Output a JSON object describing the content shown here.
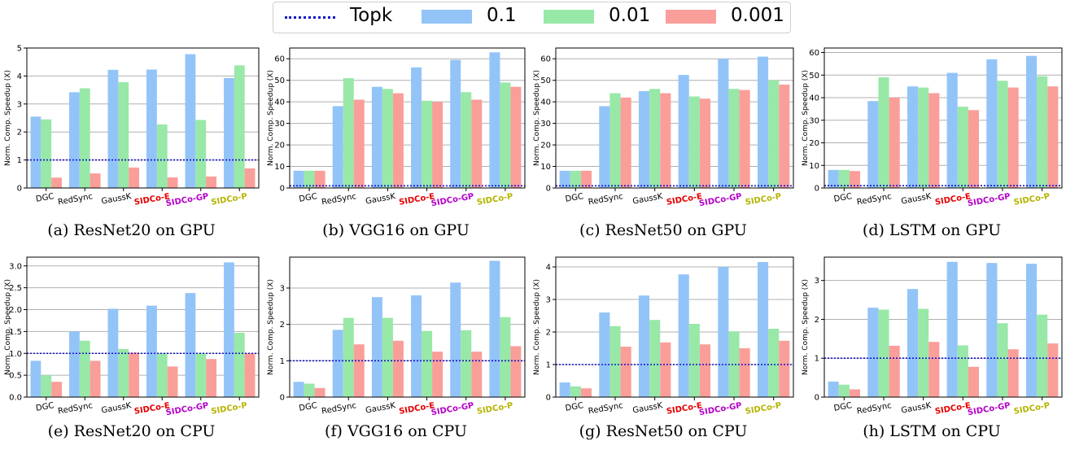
{
  "legend": [
    {
      "name": "Topk",
      "kind": "line",
      "color": "#1414c8"
    },
    {
      "name": "0.1",
      "kind": "bar",
      "color": "#93c4f8"
    },
    {
      "name": "0.01",
      "kind": "bar",
      "color": "#98e8a8"
    },
    {
      "name": "0.001",
      "kind": "bar",
      "color": "#fa9e9a"
    }
  ],
  "chart_data": [
    {
      "type": "bar",
      "caption": "(a) ResNet20 on GPU",
      "ylabel": "Norm. Comp. Speedup (X)",
      "ylim": [
        0,
        5
      ],
      "yticks": [
        "0",
        "1",
        "2",
        "3",
        "4",
        "5"
      ],
      "yticks_values": [
        0,
        1,
        2,
        3,
        4,
        5
      ],
      "grid": true,
      "categories": [
        "DGC",
        "RedSync",
        "GaussK",
        "SIDCo-E",
        "SIDCo-GP",
        "SIDCo-P"
      ],
      "category_colors": [
        "#000000",
        "#000000",
        "#000000",
        "#e60000",
        "#b400c8",
        "#b4b400"
      ],
      "baseline": 1.0,
      "series": [
        {
          "name": "0.1",
          "values": [
            2.55,
            3.42,
            4.22,
            4.23,
            4.78,
            3.93
          ]
        },
        {
          "name": "0.01",
          "values": [
            2.45,
            3.56,
            3.78,
            2.27,
            2.43,
            4.38
          ]
        },
        {
          "name": "0.001",
          "values": [
            0.37,
            0.52,
            0.73,
            0.38,
            0.41,
            0.7
          ]
        }
      ]
    },
    {
      "type": "bar",
      "caption": "(b) VGG16 on GPU",
      "ylabel": "Norm. Comp. Speedup (X)",
      "ylim": [
        0,
        65
      ],
      "yticks": [
        "0",
        "10",
        "20",
        "30",
        "40",
        "50",
        "60"
      ],
      "yticks_values": [
        0,
        10,
        20,
        30,
        40,
        50,
        60
      ],
      "grid": true,
      "categories": [
        "DGC",
        "RedSync",
        "GaussK",
        "SIDCo-E",
        "SIDCo-GP",
        "SIDCo-P"
      ],
      "category_colors": [
        "#000000",
        "#000000",
        "#000000",
        "#e60000",
        "#b400c8",
        "#b4b400"
      ],
      "baseline": 1.0,
      "series": [
        {
          "name": "0.1",
          "values": [
            8,
            38,
            47,
            56,
            59.5,
            63
          ]
        },
        {
          "name": "0.01",
          "values": [
            8,
            51,
            46,
            40.5,
            44.5,
            49
          ]
        },
        {
          "name": "0.001",
          "values": [
            8,
            41,
            44,
            40,
            41,
            47
          ]
        }
      ]
    },
    {
      "type": "bar",
      "caption": "(c) ResNet50 on GPU",
      "ylabel": "Norm. Comp. Speedup (X)",
      "ylim": [
        0,
        65
      ],
      "yticks": [
        "0",
        "10",
        "20",
        "30",
        "40",
        "50",
        "60"
      ],
      "yticks_values": [
        0,
        10,
        20,
        30,
        40,
        50,
        60
      ],
      "grid": true,
      "categories": [
        "DGC",
        "RedSync",
        "GaussK",
        "SIDCo-E",
        "SIDCo-GP",
        "SIDCo-P"
      ],
      "category_colors": [
        "#000000",
        "#000000",
        "#000000",
        "#e60000",
        "#b400c8",
        "#b4b400"
      ],
      "baseline": 1.0,
      "series": [
        {
          "name": "0.1",
          "values": [
            8,
            38,
            45,
            52.5,
            60,
            61
          ]
        },
        {
          "name": "0.01",
          "values": [
            8,
            44,
            46,
            42.5,
            46,
            50
          ]
        },
        {
          "name": "0.001",
          "values": [
            8,
            42,
            44,
            41.5,
            45.5,
            48
          ]
        }
      ]
    },
    {
      "type": "bar",
      "caption": "(d) LSTM on GPU",
      "ylabel": "Norm. Comp. Speedup (X)",
      "ylim": [
        0,
        62
      ],
      "yticks": [
        "0",
        "10",
        "20",
        "30",
        "40",
        "50",
        "60"
      ],
      "yticks_values": [
        0,
        10,
        20,
        30,
        40,
        50,
        60
      ],
      "grid": true,
      "categories": [
        "DGC",
        "RedSync",
        "GaussK",
        "SIDCo-E",
        "SIDCo-GP",
        "SIDCo-P"
      ],
      "category_colors": [
        "#000000",
        "#000000",
        "#000000",
        "#e60000",
        "#b400c8",
        "#b4b400"
      ],
      "baseline": 1.0,
      "series": [
        {
          "name": "0.1",
          "values": [
            8,
            38.5,
            45,
            51,
            57,
            58.5
          ]
        },
        {
          "name": "0.01",
          "values": [
            8,
            49,
            44.5,
            36,
            47.5,
            49.5
          ]
        },
        {
          "name": "0.001",
          "values": [
            7.5,
            40,
            42,
            34.5,
            44.5,
            45
          ]
        }
      ]
    },
    {
      "type": "bar",
      "caption": "(e) ResNet20 on CPU",
      "ylabel": "Norm. Comp. Speedup (X)",
      "ylim": [
        0,
        3.2
      ],
      "yticks": [
        "0.0",
        "0.5",
        "1.0",
        "1.5",
        "2.0",
        "2.5",
        "3.0"
      ],
      "yticks_values": [
        0,
        0.5,
        1,
        1.5,
        2,
        2.5,
        3
      ],
      "grid": true,
      "categories": [
        "DGC",
        "RedSync",
        "GaussK",
        "SIDCo-E",
        "SIDCo-GP",
        "SIDCo-P"
      ],
      "category_colors": [
        "#000000",
        "#000000",
        "#000000",
        "#e60000",
        "#b400c8",
        "#b4b400"
      ],
      "baseline": 1.0,
      "series": [
        {
          "name": "0.1",
          "values": [
            0.83,
            1.5,
            2.02,
            2.09,
            2.38,
            3.08
          ]
        },
        {
          "name": "0.01",
          "values": [
            0.5,
            1.29,
            1.1,
            1.0,
            1.0,
            1.47
          ]
        },
        {
          "name": "0.001",
          "values": [
            0.35,
            0.83,
            1.02,
            0.7,
            0.87,
            1.0
          ]
        }
      ]
    },
    {
      "type": "bar",
      "caption": "(f) VGG16 on CPU",
      "ylabel": "Norm. Comp. Speedup (X)",
      "ylim": [
        0,
        3.85
      ],
      "yticks": [
        "0",
        "1",
        "2",
        "3"
      ],
      "yticks_values": [
        0,
        1,
        2,
        3
      ],
      "grid": true,
      "categories": [
        "DGC",
        "RedSync",
        "GaussK",
        "SIDCo-E",
        "SIDCo-GP",
        "SIDCo-P"
      ],
      "category_colors": [
        "#000000",
        "#000000",
        "#000000",
        "#e60000",
        "#b400c8",
        "#b4b400"
      ],
      "baseline": 1.0,
      "series": [
        {
          "name": "0.1",
          "values": [
            0.42,
            1.85,
            2.75,
            2.8,
            3.15,
            3.75
          ]
        },
        {
          "name": "0.01",
          "values": [
            0.37,
            2.18,
            2.18,
            1.82,
            1.84,
            2.2
          ]
        },
        {
          "name": "0.001",
          "values": [
            0.25,
            1.45,
            1.55,
            1.25,
            1.25,
            1.4
          ]
        }
      ]
    },
    {
      "type": "bar",
      "caption": "(g) ResNet50 on CPU",
      "ylabel": "Norm. Comp. Speedup (X)",
      "ylim": [
        0,
        4.3
      ],
      "yticks": [
        "0",
        "1",
        "2",
        "3",
        "4"
      ],
      "yticks_values": [
        0,
        1,
        2,
        3,
        4
      ],
      "grid": true,
      "categories": [
        "DGC",
        "RedSync",
        "GaussK",
        "SIDCo-E",
        "SIDCo-GP",
        "SIDCo-P"
      ],
      "category_colors": [
        "#000000",
        "#000000",
        "#000000",
        "#e60000",
        "#b400c8",
        "#b4b400"
      ],
      "baseline": 1.0,
      "series": [
        {
          "name": "0.1",
          "values": [
            0.45,
            2.6,
            3.12,
            3.77,
            4.0,
            4.15
          ]
        },
        {
          "name": "0.01",
          "values": [
            0.33,
            2.18,
            2.37,
            2.25,
            2.02,
            2.1
          ]
        },
        {
          "name": "0.001",
          "values": [
            0.27,
            1.55,
            1.68,
            1.62,
            1.5,
            1.73
          ]
        }
      ]
    },
    {
      "type": "bar",
      "caption": "(h) LSTM on CPU",
      "ylabel": "Norm. Comp. Speedup (X)",
      "ylim": [
        0,
        3.6
      ],
      "yticks": [
        "0",
        "1",
        "2",
        "3"
      ],
      "yticks_values": [
        0,
        1,
        2,
        3
      ],
      "grid": true,
      "categories": [
        "DGC",
        "RedSync",
        "GaussK",
        "SIDCo-E",
        "SIDCo-GP",
        "SIDCo-P"
      ],
      "category_colors": [
        "#000000",
        "#000000",
        "#000000",
        "#e60000",
        "#b400c8",
        "#b4b400"
      ],
      "baseline": 1.0,
      "series": [
        {
          "name": "0.1",
          "values": [
            0.4,
            2.3,
            2.78,
            3.48,
            3.45,
            3.43
          ]
        },
        {
          "name": "0.01",
          "values": [
            0.32,
            2.25,
            2.27,
            1.33,
            1.9,
            2.12
          ]
        },
        {
          "name": "0.001",
          "values": [
            0.2,
            1.32,
            1.42,
            0.78,
            1.23,
            1.38
          ]
        }
      ]
    }
  ]
}
